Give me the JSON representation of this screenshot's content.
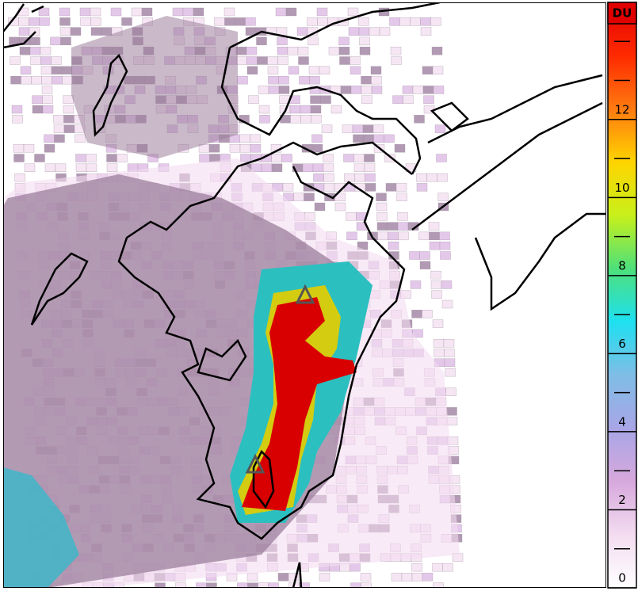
{
  "colorbar": {
    "unit": "DU",
    "range": [
      0,
      15
    ],
    "ticks": [
      0,
      2,
      4,
      6,
      8,
      10,
      12
    ],
    "minor_ticks": [
      1,
      3,
      5,
      7,
      9,
      11,
      13,
      14
    ],
    "colors": [
      "#ffffff",
      "#f3dcf0",
      "#d7a8dc",
      "#a8a6e6",
      "#7fbde6",
      "#1ee0f0",
      "#4ee07a",
      "#c8f01a",
      "#ffd400",
      "#ff7a10",
      "#ff2a00",
      "#e00000"
    ]
  }
}
